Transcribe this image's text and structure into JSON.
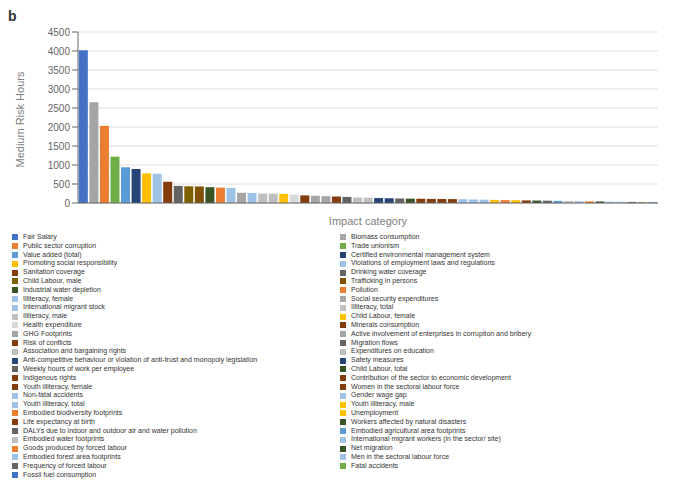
{
  "chart_data": {
    "type": "bar",
    "title": "b",
    "xlabel": "Impact category",
    "ylabel": "Medium Risk Hours",
    "categories": [
      "Fair Salary",
      "Biomass consumption",
      "Public sector corruption",
      "Trade unionism",
      "Value added (total)",
      "Certified environmental management system",
      "Promoting social responsibility",
      "Violations of employment laws and regulations",
      "Sanitation coverage",
      "Drinking water coverage",
      "Child Labour, male",
      "Trafficking in persons",
      "Industrial water depletion",
      "Pollution",
      "Illiteracy, female",
      "Social security expenditures",
      "International migrant stock",
      "Illiteracy, total",
      "Illiteracy, male",
      "Child Labour, female",
      "Health expenditure",
      "Minerals consumption",
      "GHG Footprints",
      "Active involvement of enterprises in corruption and bribery",
      "Risk of conflicts",
      "Migration flows",
      "Association and bargaining rights",
      "Expenditures on education",
      "Anti-competitive behaviour or violation of anti-trust and monopoly legislation",
      "Safety measures",
      "Weekly hours of work per employee",
      "Child Labour, total",
      "Indigenous rights",
      "Contribution of the sector to economic development",
      "Youth illiteracy, female",
      "Women in the sectoral labour force",
      "Non-fatal accidents",
      "Gender wage gap",
      "Youth illiteracy, total",
      "Youth illiteracy, male",
      "Embodied biodiversity footprints",
      "Unemployment",
      "Life expectancy at birth",
      "Workers affected by natural disasters",
      "DALYs due to indoor and outdoor air and water pollution",
      "Embodied agricultural area footprints",
      "Embodied water footprints",
      "International migrant workers (in the sector/ site)",
      "Goods produced by forced labour",
      "Net migration",
      "Embodied forest area footprints",
      "Men in the sectoral labour force",
      "Frequency of forced labour",
      "Fatal accidents",
      "Fossil fuel consumption"
    ],
    "values": [
      4020,
      2650,
      2030,
      1220,
      940,
      895,
      780,
      770,
      560,
      450,
      440,
      435,
      415,
      405,
      395,
      270,
      265,
      250,
      245,
      240,
      220,
      200,
      190,
      180,
      170,
      160,
      145,
      140,
      130,
      125,
      120,
      115,
      112,
      108,
      105,
      102,
      98,
      92,
      88,
      82,
      76,
      72,
      68,
      64,
      60,
      56,
      52,
      48,
      44,
      40,
      36,
      32,
      28,
      22,
      18
    ],
    "colors": [
      "#4472C4",
      "#A5A5A5",
      "#ED7D31",
      "#70AD47",
      "#5B9BD5",
      "#264478",
      "#FFC000",
      "#9DC3E6",
      "#843C0C",
      "#636363",
      "#7F6000",
      "#7F5000",
      "#375623",
      "#ED7D31",
      "#9DC3E6",
      "#A5A5A5",
      "#9DC3E6",
      "#BFBFBF",
      "#BFBFBF",
      "#FFC000",
      "#D9D9D9",
      "#843C0C",
      "#A5A5A5",
      "#A5A5A5",
      "#843C0C",
      "#636363",
      "#BFBFBF",
      "#BFBFBF",
      "#264478",
      "#264478",
      "#636363",
      "#375623",
      "#843C0C",
      "#843C0C",
      "#843C0C",
      "#843C0C",
      "#9DC3E6",
      "#9DC3E6",
      "#9DC3E6",
      "#FFC000",
      "#ED7D31",
      "#FFC000",
      "#843C0C",
      "#375623",
      "#636363",
      "#5B9BD5",
      "#BFBFBF",
      "#9DC3E6",
      "#ED7D31",
      "#375623",
      "#9DC3E6",
      "#9DC3E6",
      "#636363",
      "#70AD47",
      "#4472C4"
    ],
    "ylim": [
      0,
      4500
    ],
    "yticks": [
      0,
      500,
      1000,
      1500,
      2000,
      2500,
      3000,
      3500,
      4000,
      4500
    ],
    "grid": true,
    "legend": "bottom",
    "tick_labels": "y"
  }
}
